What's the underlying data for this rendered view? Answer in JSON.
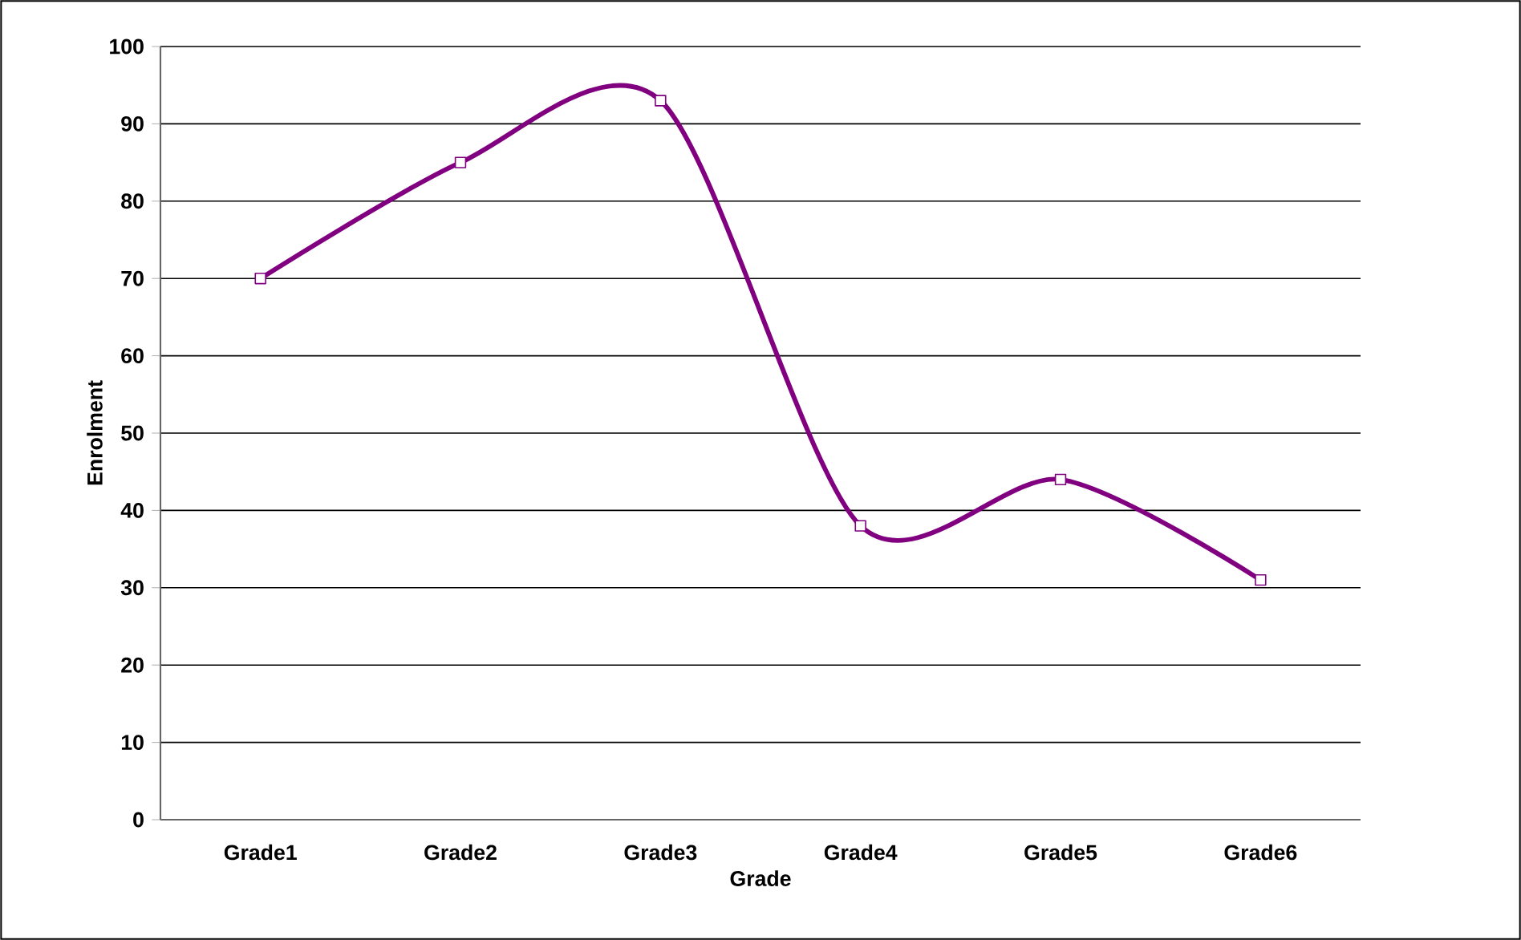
{
  "chart_data": {
    "type": "line",
    "xlabel": "Grade",
    "ylabel": "Enrolment",
    "categories": [
      "Grade1",
      "Grade2",
      "Grade3",
      "Grade4",
      "Grade5",
      "Grade6"
    ],
    "values": [
      70,
      85,
      93,
      38,
      44,
      31
    ],
    "color": "#800080",
    "ylim": [
      0,
      100
    ],
    "yticks": [
      0,
      10,
      20,
      30,
      40,
      50,
      60,
      70,
      80,
      90,
      100
    ],
    "grid": "y",
    "marker": "square",
    "line_style": "solid"
  }
}
